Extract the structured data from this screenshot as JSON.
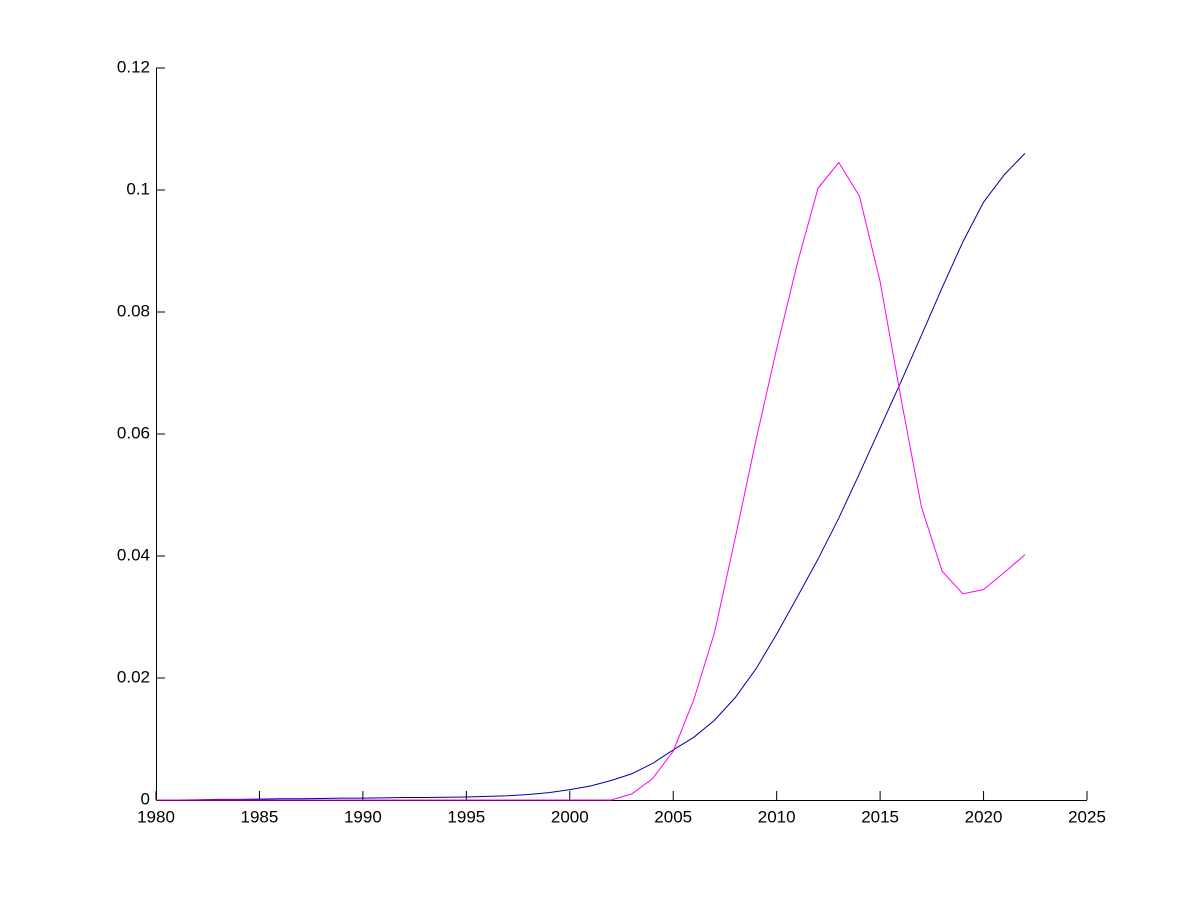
{
  "chart_data": {
    "type": "line",
    "x": [
      1980,
      1981,
      1982,
      1983,
      1984,
      1985,
      1986,
      1987,
      1988,
      1989,
      1990,
      1991,
      1992,
      1993,
      1994,
      1995,
      1996,
      1997,
      1998,
      1999,
      2000,
      2001,
      2002,
      2003,
      2004,
      2005,
      2006,
      2007,
      2008,
      2009,
      2010,
      2011,
      2012,
      2013,
      2014,
      2015,
      2016,
      2017,
      2018,
      2019,
      2020,
      2021,
      2022
    ],
    "series": [
      {
        "color": "#0000aa",
        "values": [
          0,
          0,
          5e-05,
          0.0001,
          0.0001,
          0.00015,
          0.0002,
          0.0002,
          0.00025,
          0.0003,
          0.0003,
          0.00035,
          0.0004,
          0.0004,
          0.00045,
          0.0005,
          0.0006,
          0.0007,
          0.0009,
          0.0012,
          0.0017,
          0.0023,
          0.0032,
          0.0043,
          0.006,
          0.0082,
          0.0103,
          0.0131,
          0.0168,
          0.0215,
          0.0272,
          0.0333,
          0.0395,
          0.0462,
          0.0535,
          0.061,
          0.0685,
          0.0762,
          0.084,
          0.0915,
          0.098,
          0.1025,
          0.106
        ]
      },
      {
        "color": "#ff00ff",
        "values": [
          0,
          0,
          0,
          0,
          0,
          0,
          0,
          0,
          0,
          0,
          0,
          0,
          0,
          0,
          0,
          0,
          0,
          0,
          0,
          0,
          0,
          0,
          0,
          0.001,
          0.0035,
          0.008,
          0.0165,
          0.0275,
          0.043,
          0.059,
          0.074,
          0.088,
          0.1003,
          0.1045,
          0.099,
          0.085,
          0.066,
          0.048,
          0.0375,
          0.0338,
          0.0345,
          0.0373,
          0.0402
        ]
      }
    ],
    "xlim": [
      1980,
      2025
    ],
    "xticks": [
      1980,
      1985,
      1990,
      1995,
      2000,
      2005,
      2010,
      2015,
      2020,
      2025
    ],
    "ylim": [
      0,
      0.12
    ],
    "yticks": [
      0,
      0.02,
      0.04,
      0.06,
      0.08,
      0.1,
      0.12
    ]
  }
}
